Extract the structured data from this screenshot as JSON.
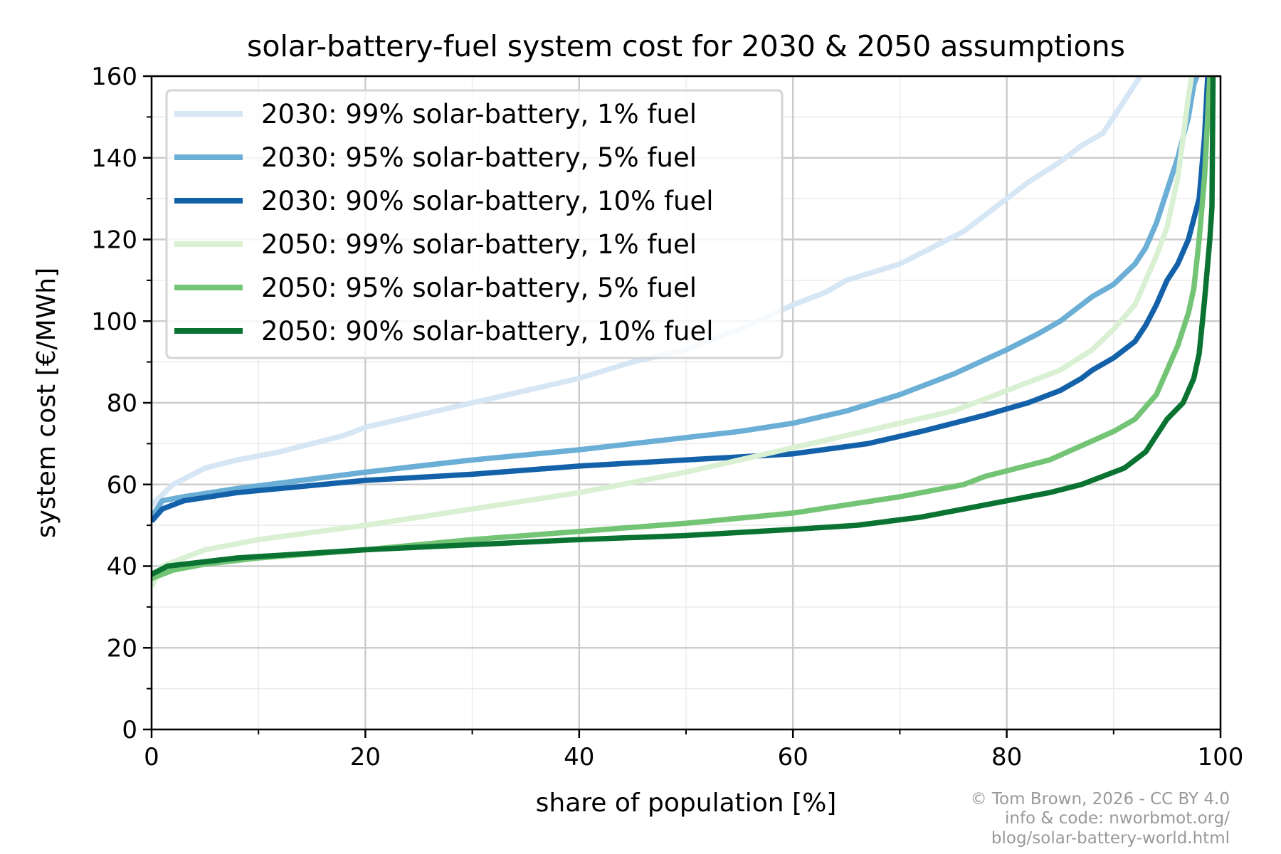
{
  "chart_data": {
    "type": "line",
    "title": "solar-battery-fuel system cost for 2030 & 2050 assumptions",
    "xlabel": "share of population [%]",
    "ylabel": "system cost [€/MWh]",
    "xlim": [
      0,
      100
    ],
    "ylim": [
      0,
      160
    ],
    "xticks": [
      "0",
      "20",
      "40",
      "60",
      "80",
      "100"
    ],
    "yticks": [
      "0",
      "20",
      "40",
      "60",
      "80",
      "100",
      "120",
      "140",
      "160"
    ],
    "grid": true,
    "legend_position": "top-left",
    "series": [
      {
        "name": "2030: 99% solar-battery, 1% fuel",
        "color": "#d6e6f4",
        "points": [
          [
            0,
            55
          ],
          [
            2,
            60
          ],
          [
            5,
            64
          ],
          [
            8,
            66
          ],
          [
            12,
            68
          ],
          [
            18,
            72
          ],
          [
            20,
            74
          ],
          [
            30,
            80
          ],
          [
            40,
            86
          ],
          [
            45,
            90
          ],
          [
            50,
            93
          ],
          [
            55,
            98
          ],
          [
            60,
            104
          ],
          [
            63,
            107
          ],
          [
            65,
            110
          ],
          [
            70,
            114
          ],
          [
            73,
            118
          ],
          [
            76,
            122
          ],
          [
            80,
            130
          ],
          [
            82,
            134
          ],
          [
            85,
            139
          ],
          [
            87,
            143
          ],
          [
            89,
            146
          ],
          [
            90,
            150
          ],
          [
            92,
            158
          ],
          [
            92.5,
            160
          ]
        ]
      },
      {
        "name": "2030: 95% solar-battery, 5% fuel",
        "color": "#6baed6",
        "points": [
          [
            0,
            52
          ],
          [
            1,
            56
          ],
          [
            3,
            57
          ],
          [
            8,
            59
          ],
          [
            20,
            63
          ],
          [
            30,
            66
          ],
          [
            40,
            68.5
          ],
          [
            50,
            71.5
          ],
          [
            55,
            73
          ],
          [
            60,
            75
          ],
          [
            65,
            78
          ],
          [
            70,
            82
          ],
          [
            75,
            87
          ],
          [
            80,
            93
          ],
          [
            83,
            97
          ],
          [
            85,
            100
          ],
          [
            87,
            104
          ],
          [
            88,
            106
          ],
          [
            90,
            109
          ],
          [
            92,
            114
          ],
          [
            93,
            118
          ],
          [
            94,
            124
          ],
          [
            95,
            132
          ],
          [
            96,
            140
          ],
          [
            97,
            150
          ],
          [
            97.5,
            158
          ],
          [
            97.8,
            160
          ]
        ]
      },
      {
        "name": "2030: 90% solar-battery, 10% fuel",
        "color": "#1361a9",
        "points": [
          [
            0,
            51
          ],
          [
            1,
            54
          ],
          [
            3,
            56
          ],
          [
            8,
            58
          ],
          [
            20,
            61
          ],
          [
            30,
            62.5
          ],
          [
            40,
            64.5
          ],
          [
            50,
            66
          ],
          [
            60,
            67.5
          ],
          [
            67,
            70
          ],
          [
            72,
            73
          ],
          [
            78,
            77
          ],
          [
            82,
            80
          ],
          [
            85,
            83
          ],
          [
            87,
            86
          ],
          [
            88,
            88
          ],
          [
            90,
            91
          ],
          [
            92,
            95
          ],
          [
            93,
            99
          ],
          [
            94,
            104
          ],
          [
            95,
            110
          ],
          [
            96,
            114
          ],
          [
            97,
            120
          ],
          [
            98,
            130
          ],
          [
            98.5,
            145
          ],
          [
            98.8,
            160
          ]
        ]
      },
      {
        "name": "2050: 99% solar-battery, 1% fuel",
        "color": "#d9f0d3",
        "points": [
          [
            0,
            35
          ],
          [
            1,
            40
          ],
          [
            3,
            42
          ],
          [
            5,
            44
          ],
          [
            10,
            46.5
          ],
          [
            20,
            50
          ],
          [
            30,
            54
          ],
          [
            40,
            58
          ],
          [
            50,
            63
          ],
          [
            55,
            66
          ],
          [
            60,
            69
          ],
          [
            65,
            72
          ],
          [
            70,
            75
          ],
          [
            75,
            78
          ],
          [
            80,
            83
          ],
          [
            85,
            88
          ],
          [
            88,
            93
          ],
          [
            90,
            98
          ],
          [
            92,
            104
          ],
          [
            93,
            110
          ],
          [
            94,
            116
          ],
          [
            95,
            123
          ],
          [
            96,
            135
          ],
          [
            96.5,
            145
          ],
          [
            97,
            155
          ],
          [
            97.3,
            160
          ]
        ]
      },
      {
        "name": "2050: 95% solar-battery, 5% fuel",
        "color": "#74c476",
        "points": [
          [
            0,
            37
          ],
          [
            2,
            39
          ],
          [
            5,
            40.5
          ],
          [
            10,
            42
          ],
          [
            20,
            44
          ],
          [
            30,
            46.5
          ],
          [
            40,
            48.5
          ],
          [
            50,
            50.5
          ],
          [
            60,
            53
          ],
          [
            70,
            57
          ],
          [
            76,
            60
          ],
          [
            78,
            62
          ],
          [
            84,
            66
          ],
          [
            90,
            73
          ],
          [
            92,
            76
          ],
          [
            94,
            82
          ],
          [
            95,
            88
          ],
          [
            96,
            94
          ],
          [
            97,
            102
          ],
          [
            97.5,
            108
          ],
          [
            98,
            120
          ],
          [
            98.5,
            135
          ],
          [
            98.8,
            150
          ],
          [
            99,
            160
          ]
        ]
      },
      {
        "name": "2050: 90% solar-battery, 10% fuel",
        "color": "#0b7332",
        "points": [
          [
            0,
            38
          ],
          [
            1.5,
            40
          ],
          [
            8,
            42
          ],
          [
            20,
            44
          ],
          [
            40,
            46.5
          ],
          [
            50,
            47.5
          ],
          [
            60,
            49
          ],
          [
            66,
            50
          ],
          [
            72,
            52
          ],
          [
            78,
            55
          ],
          [
            84,
            58
          ],
          [
            87,
            60
          ],
          [
            91,
            64
          ],
          [
            93,
            68
          ],
          [
            95,
            76
          ],
          [
            96.5,
            80
          ],
          [
            97.5,
            86
          ],
          [
            98,
            92
          ],
          [
            98.5,
            105
          ],
          [
            99,
            120
          ],
          [
            99.2,
            128
          ],
          [
            99.3,
            160
          ]
        ]
      }
    ]
  },
  "credit": {
    "line1": "© Tom Brown, 2026 - CC BY 4.0",
    "line2": "info & code: nworbmot.org/",
    "line3": "blog/solar-battery-world.html"
  }
}
